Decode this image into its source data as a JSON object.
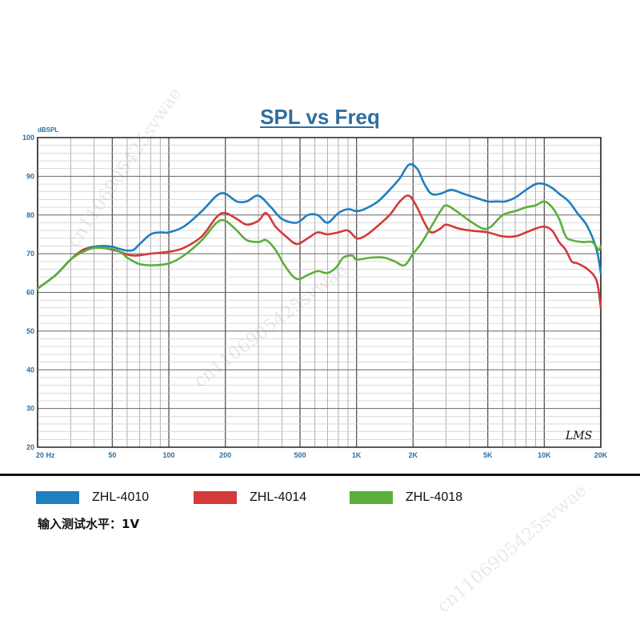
{
  "chart_data": {
    "type": "line",
    "title": "SPL vs Freq",
    "ylabel": "dBSPL",
    "xscale": "log",
    "xlim": [
      20,
      20000
    ],
    "ylim": [
      20,
      100
    ],
    "grid": true,
    "legend_placement": "bottom",
    "x_tick_labels": [
      {
        "value": 20,
        "label": "20 Hz"
      },
      {
        "value": 50,
        "label": "50"
      },
      {
        "value": 100,
        "label": "100"
      },
      {
        "value": 200,
        "label": "200"
      },
      {
        "value": 500,
        "label": "500"
      },
      {
        "value": 1000,
        "label": "1K"
      },
      {
        "value": 2000,
        "label": "2K"
      },
      {
        "value": 5000,
        "label": "5K"
      },
      {
        "value": 10000,
        "label": "10K"
      },
      {
        "value": 20000,
        "label": "20K"
      }
    ],
    "y_ticks": [
      20,
      30,
      40,
      50,
      60,
      70,
      80,
      90,
      100
    ],
    "annotation": "LMS",
    "series": [
      {
        "name": "ZHL-4010",
        "color": "#1f7fbf",
        "points": [
          [
            20,
            61
          ],
          [
            25,
            64.5
          ],
          [
            30,
            68.5
          ],
          [
            35,
            71
          ],
          [
            40,
            71.8
          ],
          [
            45,
            72
          ],
          [
            50,
            71.8
          ],
          [
            55,
            71.2
          ],
          [
            60,
            70.8
          ],
          [
            65,
            71
          ],
          [
            70,
            72.5
          ],
          [
            80,
            75
          ],
          [
            90,
            75.5
          ],
          [
            100,
            75.5
          ],
          [
            120,
            77
          ],
          [
            150,
            81
          ],
          [
            180,
            85
          ],
          [
            200,
            85.5
          ],
          [
            230,
            83.5
          ],
          [
            260,
            83.5
          ],
          [
            300,
            85
          ],
          [
            350,
            82
          ],
          [
            400,
            79
          ],
          [
            480,
            78
          ],
          [
            550,
            80
          ],
          [
            620,
            80
          ],
          [
            700,
            78
          ],
          [
            800,
            80.5
          ],
          [
            900,
            81.5
          ],
          [
            1000,
            81
          ],
          [
            1100,
            81.5
          ],
          [
            1300,
            83.5
          ],
          [
            1500,
            86.5
          ],
          [
            1700,
            89.5
          ],
          [
            1900,
            93
          ],
          [
            2100,
            92
          ],
          [
            2300,
            88
          ],
          [
            2500,
            85.5
          ],
          [
            2800,
            85.5
          ],
          [
            3200,
            86.5
          ],
          [
            3700,
            85.5
          ],
          [
            4300,
            84.5
          ],
          [
            5000,
            83.5
          ],
          [
            5600,
            83.5
          ],
          [
            6200,
            83.5
          ],
          [
            7000,
            84.5
          ],
          [
            8000,
            86.5
          ],
          [
            9000,
            88
          ],
          [
            10000,
            88
          ],
          [
            11000,
            87
          ],
          [
            12000,
            85.5
          ],
          [
            13500,
            83.5
          ],
          [
            15000,
            80.5
          ],
          [
            17000,
            77
          ],
          [
            19000,
            71
          ],
          [
            20000,
            65
          ]
        ]
      },
      {
        "name": "ZHL-4014",
        "color": "#d33a3a",
        "points": [
          [
            20,
            61
          ],
          [
            25,
            64.5
          ],
          [
            30,
            68.5
          ],
          [
            35,
            71
          ],
          [
            40,
            71.5
          ],
          [
            45,
            71.5
          ],
          [
            50,
            71
          ],
          [
            55,
            70.5
          ],
          [
            60,
            69.8
          ],
          [
            65,
            69.5
          ],
          [
            70,
            69.6
          ],
          [
            80,
            70
          ],
          [
            100,
            70.5
          ],
          [
            120,
            71.5
          ],
          [
            150,
            74.5
          ],
          [
            180,
            79.5
          ],
          [
            200,
            80.5
          ],
          [
            230,
            79
          ],
          [
            260,
            77.5
          ],
          [
            300,
            78.5
          ],
          [
            330,
            80.5
          ],
          [
            370,
            77
          ],
          [
            420,
            74.5
          ],
          [
            480,
            72.5
          ],
          [
            550,
            74
          ],
          [
            620,
            75.5
          ],
          [
            700,
            75
          ],
          [
            800,
            75.5
          ],
          [
            900,
            76
          ],
          [
            1000,
            74
          ],
          [
            1100,
            74.5
          ],
          [
            1250,
            76.5
          ],
          [
            1500,
            80
          ],
          [
            1700,
            83.5
          ],
          [
            1900,
            85
          ],
          [
            2100,
            82
          ],
          [
            2300,
            78
          ],
          [
            2500,
            75.5
          ],
          [
            2800,
            76.5
          ],
          [
            3000,
            77.5
          ],
          [
            3500,
            76.5
          ],
          [
            4000,
            76
          ],
          [
            5000,
            75.5
          ],
          [
            6000,
            74.5
          ],
          [
            7000,
            74.5
          ],
          [
            8000,
            75.5
          ],
          [
            9000,
            76.5
          ],
          [
            10000,
            77
          ],
          [
            11000,
            76
          ],
          [
            12000,
            73
          ],
          [
            13000,
            71
          ],
          [
            14000,
            68
          ],
          [
            15000,
            67.5
          ],
          [
            17000,
            66
          ],
          [
            19000,
            63
          ],
          [
            20000,
            56
          ]
        ]
      },
      {
        "name": "ZHL-4018",
        "color": "#5aaf3a",
        "points": [
          [
            20,
            61
          ],
          [
            25,
            64.5
          ],
          [
            30,
            68.5
          ],
          [
            35,
            70.5
          ],
          [
            40,
            71.5
          ],
          [
            45,
            71.5
          ],
          [
            50,
            71.2
          ],
          [
            55,
            70.5
          ],
          [
            60,
            69
          ],
          [
            65,
            68
          ],
          [
            70,
            67.3
          ],
          [
            80,
            67
          ],
          [
            100,
            67.5
          ],
          [
            120,
            69.5
          ],
          [
            150,
            73.5
          ],
          [
            180,
            78
          ],
          [
            200,
            78.5
          ],
          [
            230,
            76
          ],
          [
            260,
            73.5
          ],
          [
            300,
            73
          ],
          [
            330,
            73.5
          ],
          [
            370,
            71
          ],
          [
            420,
            66.5
          ],
          [
            480,
            63.5
          ],
          [
            550,
            64.5
          ],
          [
            620,
            65.5
          ],
          [
            700,
            65
          ],
          [
            780,
            66.5
          ],
          [
            850,
            69
          ],
          [
            950,
            69.5
          ],
          [
            1000,
            68.5
          ],
          [
            1200,
            69
          ],
          [
            1400,
            69
          ],
          [
            1600,
            68
          ],
          [
            1800,
            67
          ],
          [
            2000,
            70
          ],
          [
            2200,
            72.5
          ],
          [
            2500,
            77
          ],
          [
            2800,
            81
          ],
          [
            3000,
            82.5
          ],
          [
            3400,
            81
          ],
          [
            4000,
            78.5
          ],
          [
            4700,
            76.5
          ],
          [
            5200,
            77
          ],
          [
            6000,
            80
          ],
          [
            7000,
            81
          ],
          [
            8000,
            82
          ],
          [
            9000,
            82.5
          ],
          [
            10000,
            83.5
          ],
          [
            11000,
            82
          ],
          [
            12000,
            79
          ],
          [
            13000,
            74.5
          ],
          [
            14000,
            73.5
          ],
          [
            16000,
            73
          ],
          [
            18000,
            73
          ],
          [
            19500,
            71
          ],
          [
            20000,
            72
          ]
        ]
      }
    ]
  },
  "legend": {
    "items": [
      {
        "label": "ZHL-4010",
        "color": "#1f7fbf"
      },
      {
        "label": "ZHL-4014",
        "color": "#d33a3a"
      },
      {
        "label": "ZHL-4018",
        "color": "#5aaf3a"
      }
    ]
  },
  "note": "输入测试水平：1V",
  "watermark": "cn1106905425svwae"
}
